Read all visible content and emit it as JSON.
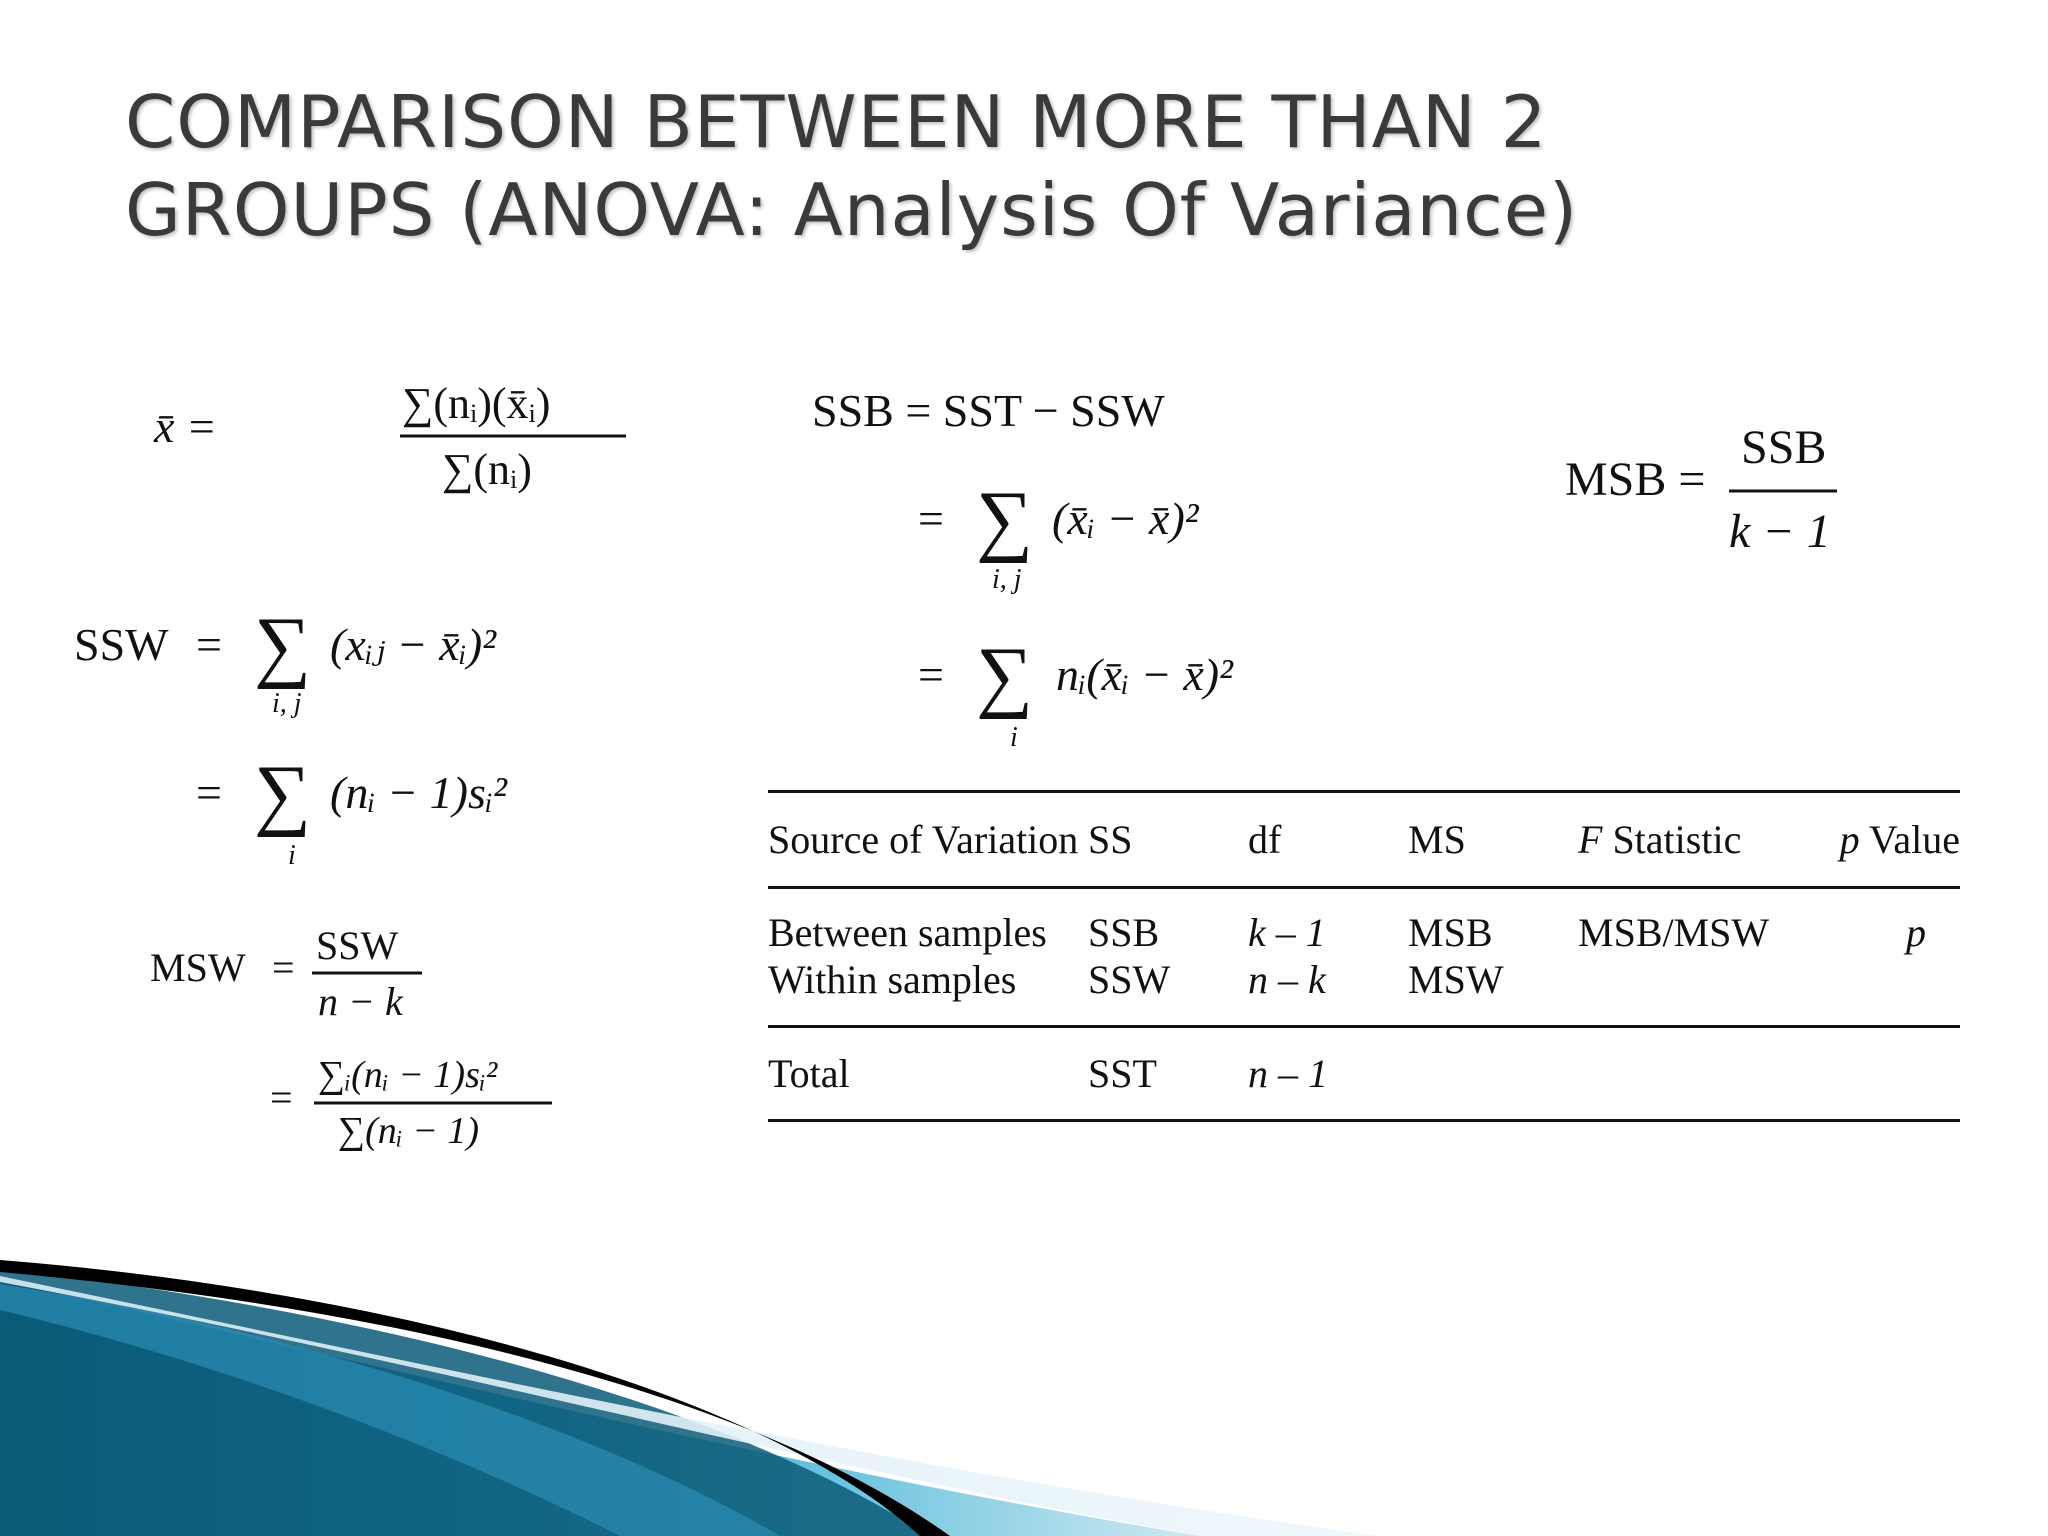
{
  "slide": {
    "title_line1": "COMPARISON BETWEEN MORE THAN 2",
    "title_line2": "GROUPS (ANOVA: Analysis Of Variance)"
  },
  "formulas": {
    "grand_mean": {
      "lhs": "x̄ =",
      "numerator": "∑(nᵢ)(x̄ᵢ)",
      "denominator": "∑(nᵢ)"
    },
    "ssw": {
      "lhs": "SSW",
      "line1": "(xᵢⱼ − x̄ᵢ)²",
      "line1_sub": "i, j",
      "line2": "(nᵢ − 1)sᵢ²",
      "line2_sub": "i"
    },
    "msw": {
      "lhs": "MSW",
      "num1": "SSW",
      "den1": "n − k",
      "num2": "∑ᵢ(nᵢ − 1)sᵢ²",
      "den2": "∑(nᵢ − 1)"
    },
    "ssb": {
      "line0": "SSB = SST − SSW",
      "line1": "(x̄ᵢ − x̄)²",
      "line1_sub": "i, j",
      "line2": "nᵢ(x̄ᵢ − x̄)²",
      "line2_sub": "i"
    },
    "msb": {
      "lhs": "MSB =",
      "numerator": "SSB",
      "denominator": "k − 1"
    }
  },
  "anova_table": {
    "headers": {
      "source": "Source of Variation",
      "ss": "SS",
      "df": "df",
      "ms": "MS",
      "f_italic": "F",
      "f_rest": " Statistic",
      "p_italic": "p",
      "p_rest": " Value"
    },
    "rows": [
      {
        "source": "Between samples",
        "ss": "SSB",
        "df": "k – 1",
        "ms": "MSB",
        "f": "MSB/MSW",
        "p": "p"
      },
      {
        "source": "Within samples",
        "ss": "SSW",
        "df": "n – k",
        "ms": "MSW",
        "f": "",
        "p": ""
      }
    ],
    "total": {
      "source": "Total",
      "ss": "SST",
      "df": "n – 1"
    }
  },
  "colors": {
    "title": "#3a3a3a",
    "wave_dark": "#0b5a78",
    "wave_light": "#6cc4de",
    "wave_black": "#000000"
  }
}
